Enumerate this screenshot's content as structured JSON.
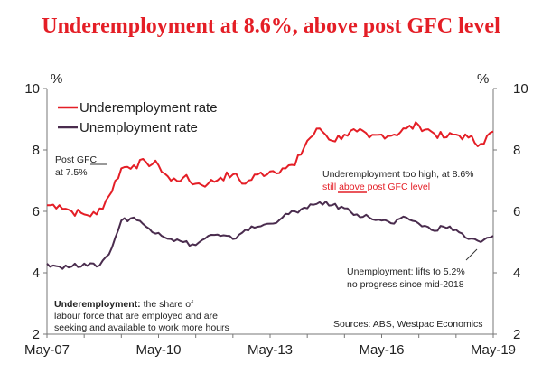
{
  "title": "Underemployment at 8.6%, above post GFC level",
  "colors": {
    "underemployment": "#e41e26",
    "unemployment": "#4a2c4e",
    "axis": "#777777",
    "title": "#e41e26"
  },
  "chart_data": {
    "type": "line",
    "ylabel_left": "%",
    "ylabel_right": "%",
    "ylim": [
      2,
      10
    ],
    "yticks": [
      "10",
      "8",
      "6",
      "4",
      "2"
    ],
    "xlim": [
      "2007-05",
      "2019-05"
    ],
    "xticks": [
      "May-07",
      "May-10",
      "May-13",
      "May-16",
      "May-19"
    ],
    "legend_position": "top-left",
    "grid": false,
    "series": [
      {
        "name": "Underemployment rate",
        "color": "#e41e26",
        "points": [
          [
            "2007-05",
            6.2
          ],
          [
            "2007-09",
            6.2
          ],
          [
            "2008-01",
            6.0
          ],
          [
            "2008-05",
            5.9
          ],
          [
            "2008-09",
            5.9
          ],
          [
            "2009-01",
            6.5
          ],
          [
            "2009-05",
            7.4
          ],
          [
            "2009-09",
            7.5
          ],
          [
            "2010-01",
            7.6
          ],
          [
            "2010-05",
            7.5
          ],
          [
            "2010-09",
            7.0
          ],
          [
            "2011-01",
            7.1
          ],
          [
            "2011-05",
            6.9
          ],
          [
            "2011-09",
            6.9
          ],
          [
            "2012-01",
            7.1
          ],
          [
            "2012-05",
            7.2
          ],
          [
            "2012-09",
            6.9
          ],
          [
            "2013-01",
            7.2
          ],
          [
            "2013-05",
            7.3
          ],
          [
            "2013-09",
            7.4
          ],
          [
            "2014-01",
            7.5
          ],
          [
            "2014-05",
            8.3
          ],
          [
            "2014-09",
            8.7
          ],
          [
            "2015-01",
            8.3
          ],
          [
            "2015-05",
            8.5
          ],
          [
            "2015-09",
            8.6
          ],
          [
            "2016-01",
            8.4
          ],
          [
            "2016-05",
            8.5
          ],
          [
            "2016-09",
            8.5
          ],
          [
            "2017-01",
            8.7
          ],
          [
            "2017-05",
            8.8
          ],
          [
            "2017-09",
            8.6
          ],
          [
            "2018-01",
            8.4
          ],
          [
            "2018-05",
            8.5
          ],
          [
            "2018-09",
            8.4
          ],
          [
            "2019-01",
            8.2
          ],
          [
            "2019-05",
            8.6
          ]
        ]
      },
      {
        "name": "Unemployment rate",
        "color": "#4a2c4e",
        "points": [
          [
            "2007-05",
            4.3
          ],
          [
            "2007-09",
            4.2
          ],
          [
            "2008-01",
            4.2
          ],
          [
            "2008-05",
            4.3
          ],
          [
            "2008-09",
            4.2
          ],
          [
            "2009-01",
            4.6
          ],
          [
            "2009-05",
            5.7
          ],
          [
            "2009-09",
            5.8
          ],
          [
            "2010-01",
            5.5
          ],
          [
            "2010-05",
            5.3
          ],
          [
            "2010-09",
            5.1
          ],
          [
            "2011-01",
            5.0
          ],
          [
            "2011-05",
            4.9
          ],
          [
            "2011-09",
            5.2
          ],
          [
            "2012-01",
            5.2
          ],
          [
            "2012-05",
            5.1
          ],
          [
            "2012-09",
            5.4
          ],
          [
            "2013-01",
            5.5
          ],
          [
            "2013-05",
            5.6
          ],
          [
            "2013-09",
            5.8
          ],
          [
            "2014-01",
            6.0
          ],
          [
            "2014-05",
            6.1
          ],
          [
            "2014-09",
            6.3
          ],
          [
            "2015-01",
            6.2
          ],
          [
            "2015-05",
            6.1
          ],
          [
            "2015-09",
            5.9
          ],
          [
            "2016-01",
            5.8
          ],
          [
            "2016-05",
            5.7
          ],
          [
            "2016-09",
            5.6
          ],
          [
            "2017-01",
            5.8
          ],
          [
            "2017-05",
            5.6
          ],
          [
            "2017-09",
            5.4
          ],
          [
            "2018-01",
            5.5
          ],
          [
            "2018-05",
            5.4
          ],
          [
            "2018-09",
            5.1
          ],
          [
            "2019-01",
            5.0
          ],
          [
            "2019-05",
            5.2
          ]
        ]
      }
    ],
    "annotations": {
      "post_gfc_line1": "Post GFC",
      "post_gfc_line2": "at 7.5%",
      "under_high_line1": "Underemployment too high, at 8.6%",
      "under_high_line2_a": "still ",
      "under_high_line2_b": "above",
      "under_high_line2_c": " post GFC level",
      "unemp_line1": "Unemployment: lifts to 5.2%",
      "unemp_line2": "no progress since mid-2018",
      "definition_bold": "Underemployment:",
      "definition_line1_rest": " the share of",
      "definition_line2": "labour force that are employed and are",
      "definition_line3": "seeking and available to work more hours",
      "sources": "Sources: ABS, Westpac Economics"
    }
  }
}
